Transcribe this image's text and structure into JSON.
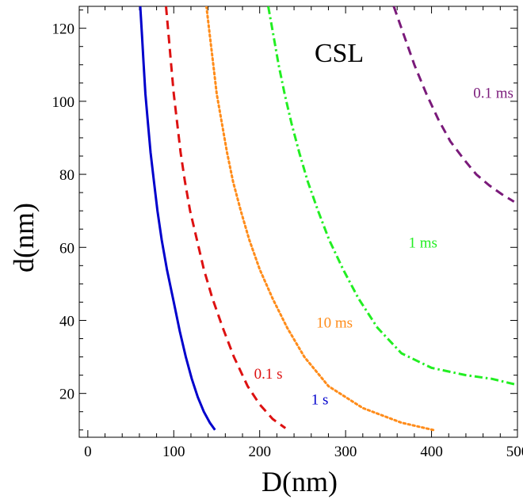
{
  "chart_data": {
    "type": "line",
    "title": "CSL",
    "xlabel": "D(nm)",
    "ylabel": "d(nm)",
    "xlim": [
      -10,
      500
    ],
    "ylim": [
      8,
      126
    ],
    "grid": false,
    "legend": "none",
    "xticks": [
      0,
      100,
      200,
      300,
      400,
      500
    ],
    "xtick_labels": [
      "0",
      "100",
      "200",
      "300",
      "400",
      "500"
    ],
    "yticks": [
      20,
      40,
      60,
      80,
      100,
      120
    ],
    "ytick_labels": [
      "20",
      "40",
      "60",
      "80",
      "100",
      "120"
    ],
    "series": [
      {
        "name": "1 s",
        "color": "#0000cc",
        "style": "solid",
        "label_pos": [
          270,
          17
        ],
        "points": [
          [
            61,
            126
          ],
          [
            63,
            118
          ],
          [
            65,
            110
          ],
          [
            67,
            102
          ],
          [
            70,
            94
          ],
          [
            73,
            86
          ],
          [
            77,
            78
          ],
          [
            81,
            70
          ],
          [
            86,
            62
          ],
          [
            92,
            54
          ],
          [
            100,
            45
          ],
          [
            107,
            37
          ],
          [
            114,
            30
          ],
          [
            121,
            24
          ],
          [
            128,
            19
          ],
          [
            135,
            15
          ],
          [
            142,
            12
          ],
          [
            148,
            10
          ]
        ]
      },
      {
        "name": "0.1 s",
        "color": "#dd1111",
        "style": "dashed",
        "label_pos": [
          210,
          24
        ],
        "points": [
          [
            91,
            126
          ],
          [
            94,
            118
          ],
          [
            97,
            110
          ],
          [
            100,
            102
          ],
          [
            104,
            94
          ],
          [
            108,
            86
          ],
          [
            113,
            78
          ],
          [
            119,
            70
          ],
          [
            127,
            62
          ],
          [
            135,
            54
          ],
          [
            145,
            46
          ],
          [
            157,
            38
          ],
          [
            170,
            30
          ],
          [
            186,
            22
          ],
          [
            200,
            17
          ],
          [
            215,
            13
          ],
          [
            230,
            10.5
          ]
        ]
      },
      {
        "name": "10 ms",
        "color": "#ff8c1a",
        "style": "dotted",
        "label_pos": [
          287,
          38
        ],
        "points": [
          [
            138,
            126
          ],
          [
            142,
            118
          ],
          [
            146,
            110
          ],
          [
            150,
            102
          ],
          [
            156,
            94
          ],
          [
            162,
            86
          ],
          [
            169,
            78
          ],
          [
            178,
            70
          ],
          [
            188,
            62
          ],
          [
            200,
            54
          ],
          [
            215,
            46
          ],
          [
            232,
            38
          ],
          [
            252,
            30
          ],
          [
            280,
            22
          ],
          [
            320,
            16
          ],
          [
            365,
            12
          ],
          [
            402,
            10
          ]
        ]
      },
      {
        "name": "1 ms",
        "color": "#22ee22",
        "style": "dashdot",
        "label_pos": [
          390,
          60
        ],
        "points": [
          [
            210,
            126
          ],
          [
            216,
            118
          ],
          [
            222,
            110
          ],
          [
            229,
            102
          ],
          [
            237,
            94
          ],
          [
            246,
            86
          ],
          [
            256,
            78
          ],
          [
            268,
            70
          ],
          [
            281,
            62
          ],
          [
            297,
            54
          ],
          [
            315,
            46
          ],
          [
            337,
            38
          ],
          [
            365,
            31
          ],
          [
            400,
            27
          ],
          [
            440,
            25
          ],
          [
            470,
            24
          ],
          [
            497,
            22.5
          ]
        ]
      },
      {
        "name": "0.1 ms",
        "color": "#7a1a7a",
        "style": "dashed",
        "label_pos": [
          472,
          101
        ],
        "points": [
          [
            356,
            126
          ],
          [
            368,
            118
          ],
          [
            380,
            110
          ],
          [
            394,
            102
          ],
          [
            408,
            95
          ],
          [
            422,
            89
          ],
          [
            438,
            84
          ],
          [
            452,
            80
          ],
          [
            467,
            77
          ],
          [
            482,
            74.5
          ],
          [
            496,
            72.5
          ]
        ]
      }
    ]
  }
}
